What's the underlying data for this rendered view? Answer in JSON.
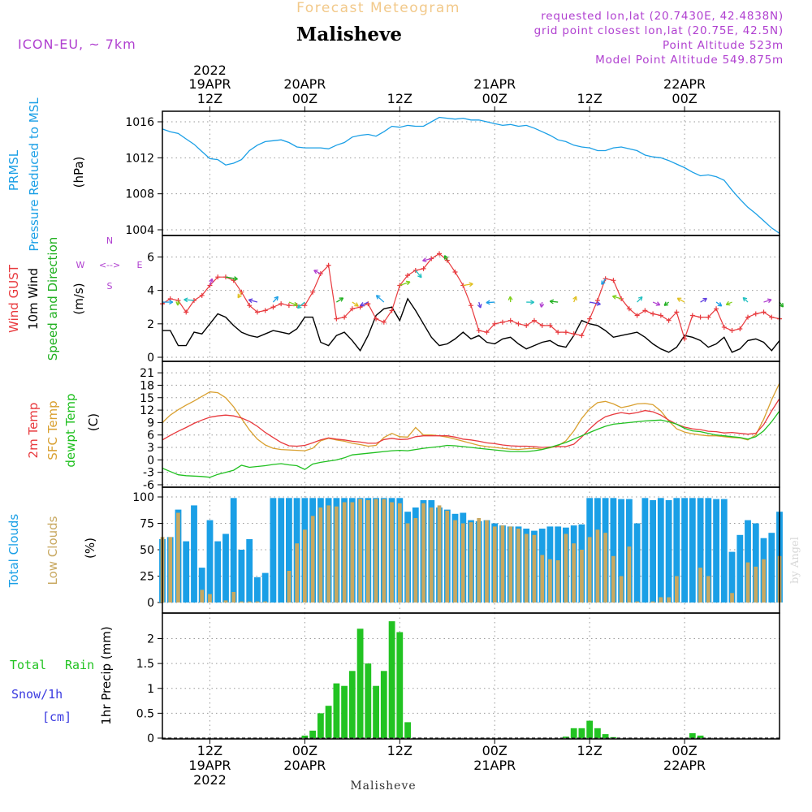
{
  "header": {
    "suptitle": "Forecast Meteogram",
    "location": "Malisheve",
    "model": "ICON-EU, ~ 7km",
    "requested": "requested lon,lat (20.7430E, 42.4838N)",
    "gridpoint": "grid point closest lon,lat (20.75E, 42.5N)",
    "point_alt": "Point Altitude 523m",
    "model_alt": "Model Point Altitude 549.875m"
  },
  "time_axis": {
    "top_year": "2022",
    "top_labels": [
      [
        "19APR",
        "12Z"
      ],
      [
        "20APR",
        "00Z"
      ],
      [
        "",
        "12Z"
      ],
      [
        "21APR",
        "00Z"
      ],
      [
        "",
        "12Z"
      ],
      [
        "22APR",
        "00Z"
      ]
    ],
    "bottom_labels": [
      [
        "12Z",
        "19APR"
      ],
      [
        "00Z",
        "20APR"
      ],
      [
        "12Z",
        ""
      ],
      [
        "00Z",
        "21APR"
      ],
      [
        "12Z",
        ""
      ],
      [
        "00Z",
        "22APR"
      ]
    ],
    "bottom_year": "2022",
    "footer": "Malisheve"
  },
  "colors": {
    "pressure": "#1a9fe6",
    "gust": "#e8393d",
    "wind": "#000000",
    "dir": "#20b020",
    "t2m": "#e8393d",
    "sfc": "#d9a030",
    "dew": "#20c020",
    "total_clouds": "#1a9fe6",
    "low_clouds": "#c8a860",
    "rain": "#22c322",
    "snow": "#3a3ae0",
    "compass": "#b040d0",
    "header_purple": "#b040d0",
    "suptitle": "#f2c98a"
  },
  "panels": {
    "pressure": {
      "labels": [
        "PRMSL",
        "Pressure Reduced to MSL",
        "(hPa)"
      ]
    },
    "wind": {
      "labels": [
        "Wind GUST",
        "10m Wind",
        "Speed and Direction",
        "(m/s)"
      ],
      "compass": [
        "N",
        "S",
        "W",
        "E",
        "<-->"
      ]
    },
    "temp": {
      "labels": [
        "2m Temp",
        "SFC Temp",
        "dewpt Temp",
        "(C)"
      ]
    },
    "clouds": {
      "labels": [
        "Total Clouds",
        "Low Clouds",
        "(%)"
      ]
    },
    "precip": {
      "labels": [
        "Total",
        "Rain",
        "Snow/1h",
        "[cm]",
        "1hr Precip (mm)"
      ]
    }
  },
  "watermark": "by Angel",
  "chart_data": {
    "type": "meteogram",
    "x": {
      "start": "2022-04-19 06Z",
      "step_hours": 1,
      "count": 79
    },
    "pressure": {
      "name": "PRMSL",
      "unit": "hPa",
      "ylim": [
        1004,
        1016
      ],
      "ticks": [
        1004,
        1008,
        1012,
        1016
      ],
      "values": [
        1015.2,
        1014.9,
        1014.7,
        1014.1,
        1013.5,
        1012.7,
        1011.9,
        1011.8,
        1011.2,
        1011.4,
        1011.8,
        1012.8,
        1013.4,
        1013.8,
        1013.9,
        1014.0,
        1013.7,
        1013.2,
        1013.1,
        1013.1,
        1013.1,
        1013.0,
        1013.4,
        1013.7,
        1014.3,
        1014.5,
        1014.6,
        1014.4,
        1014.9,
        1015.5,
        1015.4,
        1015.6,
        1015.5,
        1015.5,
        1016.0,
        1016.5,
        1016.4,
        1016.3,
        1016.4,
        1016.2,
        1016.2,
        1016.0,
        1015.8,
        1015.6,
        1015.7,
        1015.5,
        1015.6,
        1015.3,
        1014.9,
        1014.5,
        1014.0,
        1013.8,
        1013.4,
        1013.2,
        1013.1,
        1012.8,
        1012.8,
        1013.1,
        1013.2,
        1013.0,
        1012.8,
        1012.3,
        1012.1,
        1012.0,
        1011.7,
        1011.3,
        1010.9,
        1010.4,
        1010.0,
        1010.1,
        1009.9,
        1009.5,
        1008.4,
        1007.4,
        1006.5,
        1005.8,
        1005.0,
        1004.2,
        1003.6
      ]
    },
    "wind_gust": {
      "name": "Wind GUST",
      "unit": "m/s",
      "values": [
        3.2,
        3.5,
        3.4,
        2.7,
        3.4,
        3.7,
        4.3,
        4.8,
        4.8,
        4.6,
        3.9,
        3.1,
        2.7,
        2.8,
        3.0,
        3.2,
        3.1,
        3.1,
        3.1,
        3.9,
        5.0,
        5.5,
        2.3,
        2.4,
        2.9,
        3.0,
        3.2,
        2.3,
        2.1,
        2.8,
        4.3,
        4.9,
        5.2,
        5.3,
        5.9,
        6.2,
        5.8,
        5.1,
        4.3,
        3.1,
        1.6,
        1.5,
        2.0,
        2.1,
        2.2,
        2.0,
        1.9,
        2.2,
        1.9,
        1.9,
        1.5,
        1.5,
        1.4,
        1.3,
        2.3,
        3.4,
        4.7,
        4.6,
        3.5,
        2.9,
        2.5,
        2.8,
        2.6,
        2.5,
        2.2,
        2.7,
        1.1,
        2.5,
        2.4,
        2.4,
        2.9,
        1.8,
        1.6,
        1.7,
        2.4,
        2.6,
        2.7,
        2.4,
        2.3
      ]
    },
    "wind_speed": {
      "name": "10m Wind",
      "unit": "m/s",
      "ylim": [
        0,
        6.8
      ],
      "ticks": [
        0,
        2,
        4,
        6
      ],
      "values": [
        1.6,
        1.6,
        0.7,
        0.7,
        1.5,
        1.4,
        2.0,
        2.6,
        2.4,
        1.9,
        1.5,
        1.3,
        1.2,
        1.4,
        1.6,
        1.5,
        1.4,
        1.7,
        2.4,
        2.4,
        0.9,
        0.7,
        1.3,
        1.5,
        1.0,
        0.4,
        1.3,
        2.5,
        2.9,
        3.0,
        2.2,
        3.5,
        2.8,
        2.0,
        1.2,
        0.7,
        0.8,
        1.1,
        1.5,
        1.1,
        1.3,
        0.9,
        0.8,
        1.1,
        1.2,
        0.8,
        0.5,
        0.7,
        0.9,
        1.0,
        0.7,
        0.6,
        1.3,
        2.2,
        2.0,
        1.9,
        1.6,
        1.2,
        1.3,
        1.4,
        1.5,
        1.2,
        0.8,
        0.5,
        0.3,
        0.6,
        1.3,
        1.2,
        1.0,
        0.6,
        0.8,
        1.2,
        0.3,
        0.5,
        1.0,
        1.1,
        0.9,
        0.4,
        1.0
      ]
    },
    "temperature": {
      "unit": "C",
      "ylim": [
        -6,
        22
      ],
      "ticks": [
        -6,
        -3,
        0,
        3,
        6,
        9,
        12,
        15,
        18,
        21
      ],
      "t2m": [
        4.8,
        5.9,
        6.9,
        7.8,
        8.8,
        9.6,
        10.3,
        10.6,
        10.8,
        10.6,
        10.1,
        9.3,
        8.1,
        6.6,
        5.4,
        4.2,
        3.4,
        3.3,
        3.5,
        4.1,
        4.8,
        5.3,
        5.0,
        4.8,
        4.5,
        4.3,
        4.0,
        4.0,
        4.9,
        5.2,
        4.9,
        5.0,
        5.6,
        5.8,
        5.8,
        5.8,
        5.8,
        5.5,
        5.0,
        4.8,
        4.5,
        4.1,
        3.9,
        3.6,
        3.4,
        3.3,
        3.3,
        3.2,
        3.0,
        3.1,
        3.2,
        3.2,
        3.8,
        5.5,
        7.5,
        9.2,
        10.4,
        11.0,
        11.4,
        11.1,
        11.4,
        11.9,
        11.6,
        10.8,
        9.6,
        8.6,
        7.9,
        7.5,
        7.3,
        6.9,
        6.8,
        6.5,
        6.6,
        6.4,
        6.2,
        6.4,
        8.5,
        11.8,
        14.8
      ],
      "sfc": [
        9.0,
        10.8,
        12.1,
        13.2,
        14.2,
        15.3,
        16.4,
        16.2,
        15.0,
        12.8,
        10.0,
        7.2,
        5.0,
        3.6,
        2.8,
        2.5,
        2.4,
        2.3,
        2.2,
        2.8,
        4.6,
        5.2,
        4.8,
        4.5,
        4.0,
        3.7,
        3.3,
        3.5,
        5.4,
        6.4,
        5.6,
        5.5,
        7.8,
        6.0,
        6.0,
        5.8,
        5.5,
        5.0,
        4.5,
        4.0,
        3.5,
        3.2,
        3.0,
        2.8,
        2.6,
        2.5,
        2.7,
        2.8,
        2.6,
        2.9,
        3.4,
        4.6,
        7.0,
        10.0,
        12.3,
        13.8,
        14.1,
        13.5,
        12.6,
        13.0,
        13.5,
        13.6,
        13.3,
        11.8,
        9.4,
        7.5,
        6.7,
        6.3,
        6.0,
        5.8,
        5.8,
        5.6,
        5.4,
        5.3,
        4.8,
        6.0,
        9.8,
        14.5,
        18.5
      ],
      "dew": [
        -2.0,
        -2.8,
        -3.6,
        -3.8,
        -3.9,
        -4.0,
        -4.2,
        -3.5,
        -3.0,
        -2.5,
        -1.3,
        -1.8,
        -1.6,
        -1.4,
        -1.1,
        -0.9,
        -1.2,
        -1.4,
        -2.3,
        -1.0,
        -0.6,
        -0.3,
        0.0,
        0.5,
        1.2,
        1.4,
        1.6,
        1.8,
        2.0,
        2.2,
        2.3,
        2.2,
        2.5,
        2.8,
        3.0,
        3.2,
        3.5,
        3.4,
        3.2,
        3.0,
        2.8,
        2.6,
        2.4,
        2.2,
        2.0,
        2.0,
        2.0,
        2.2,
        2.5,
        3.0,
        3.6,
        4.2,
        5.0,
        5.8,
        6.6,
        7.4,
        8.1,
        8.6,
        8.8,
        9.0,
        9.2,
        9.4,
        9.5,
        9.6,
        9.2,
        8.6,
        7.6,
        7.0,
        6.8,
        6.4,
        6.0,
        5.8,
        5.6,
        5.4,
        5.0,
        5.6,
        7.0,
        9.2,
        11.8
      ]
    },
    "clouds": {
      "unit": "%",
      "ylim": [
        0,
        100
      ],
      "ticks": [
        0,
        25,
        50,
        75,
        100
      ],
      "total": [
        60,
        62,
        88,
        58,
        92,
        33,
        78,
        58,
        65,
        99,
        50,
        60,
        24,
        28,
        99,
        99,
        99,
        99,
        99,
        99,
        99,
        99,
        99,
        99,
        99,
        99,
        99,
        99,
        99,
        99,
        99,
        86,
        90,
        97,
        97,
        90,
        88,
        84,
        85,
        78,
        77,
        78,
        75,
        73,
        72,
        72,
        70,
        68,
        70,
        72,
        72,
        71,
        73,
        74,
        99,
        99,
        99,
        99,
        98,
        98,
        75,
        99,
        97,
        99,
        97,
        99,
        99,
        99,
        99,
        99,
        98,
        98,
        48,
        64,
        78,
        75,
        61,
        66,
        86
      ],
      "low": [
        62,
        62,
        85,
        0,
        0,
        12,
        8,
        0,
        2,
        10,
        1,
        1,
        1,
        1,
        0,
        0,
        30,
        56,
        69,
        82,
        90,
        92,
        91,
        95,
        95,
        98,
        97,
        98,
        98,
        95,
        94,
        75,
        80,
        94,
        90,
        92,
        87,
        78,
        75,
        76,
        80,
        78,
        72,
        73,
        72,
        70,
        65,
        64,
        45,
        41,
        40,
        65,
        56,
        50,
        62,
        69,
        66,
        44,
        25,
        53,
        1,
        0,
        1,
        5,
        5,
        25,
        0,
        0,
        33,
        25,
        0,
        0,
        9,
        0,
        38,
        34,
        41,
        0,
        44
      ]
    },
    "precip": {
      "unit": "mm",
      "ylim": [
        0,
        2.4
      ],
      "ticks": [
        0,
        0.5,
        1,
        1.5,
        2
      ],
      "rain": [
        0,
        0,
        0,
        0,
        0,
        0,
        0,
        0,
        0,
        0,
        0,
        0,
        0,
        0,
        0,
        0,
        0,
        0,
        0.05,
        0.15,
        0.5,
        0.65,
        1.1,
        1.05,
        1.35,
        2.2,
        1.5,
        1.05,
        1.35,
        2.35,
        2.13,
        0.32,
        0,
        0,
        0,
        0,
        0,
        0,
        0,
        0,
        0,
        0,
        0,
        0,
        0,
        0,
        0,
        0,
        0,
        0,
        0,
        0.03,
        0.2,
        0.2,
        0.35,
        0.2,
        0.08,
        0.02,
        0,
        0,
        0,
        0,
        0,
        0,
        0,
        0,
        0,
        0.1,
        0.05,
        0,
        0,
        0,
        0,
        0,
        0,
        0,
        0,
        0,
        0
      ],
      "snow": []
    }
  }
}
